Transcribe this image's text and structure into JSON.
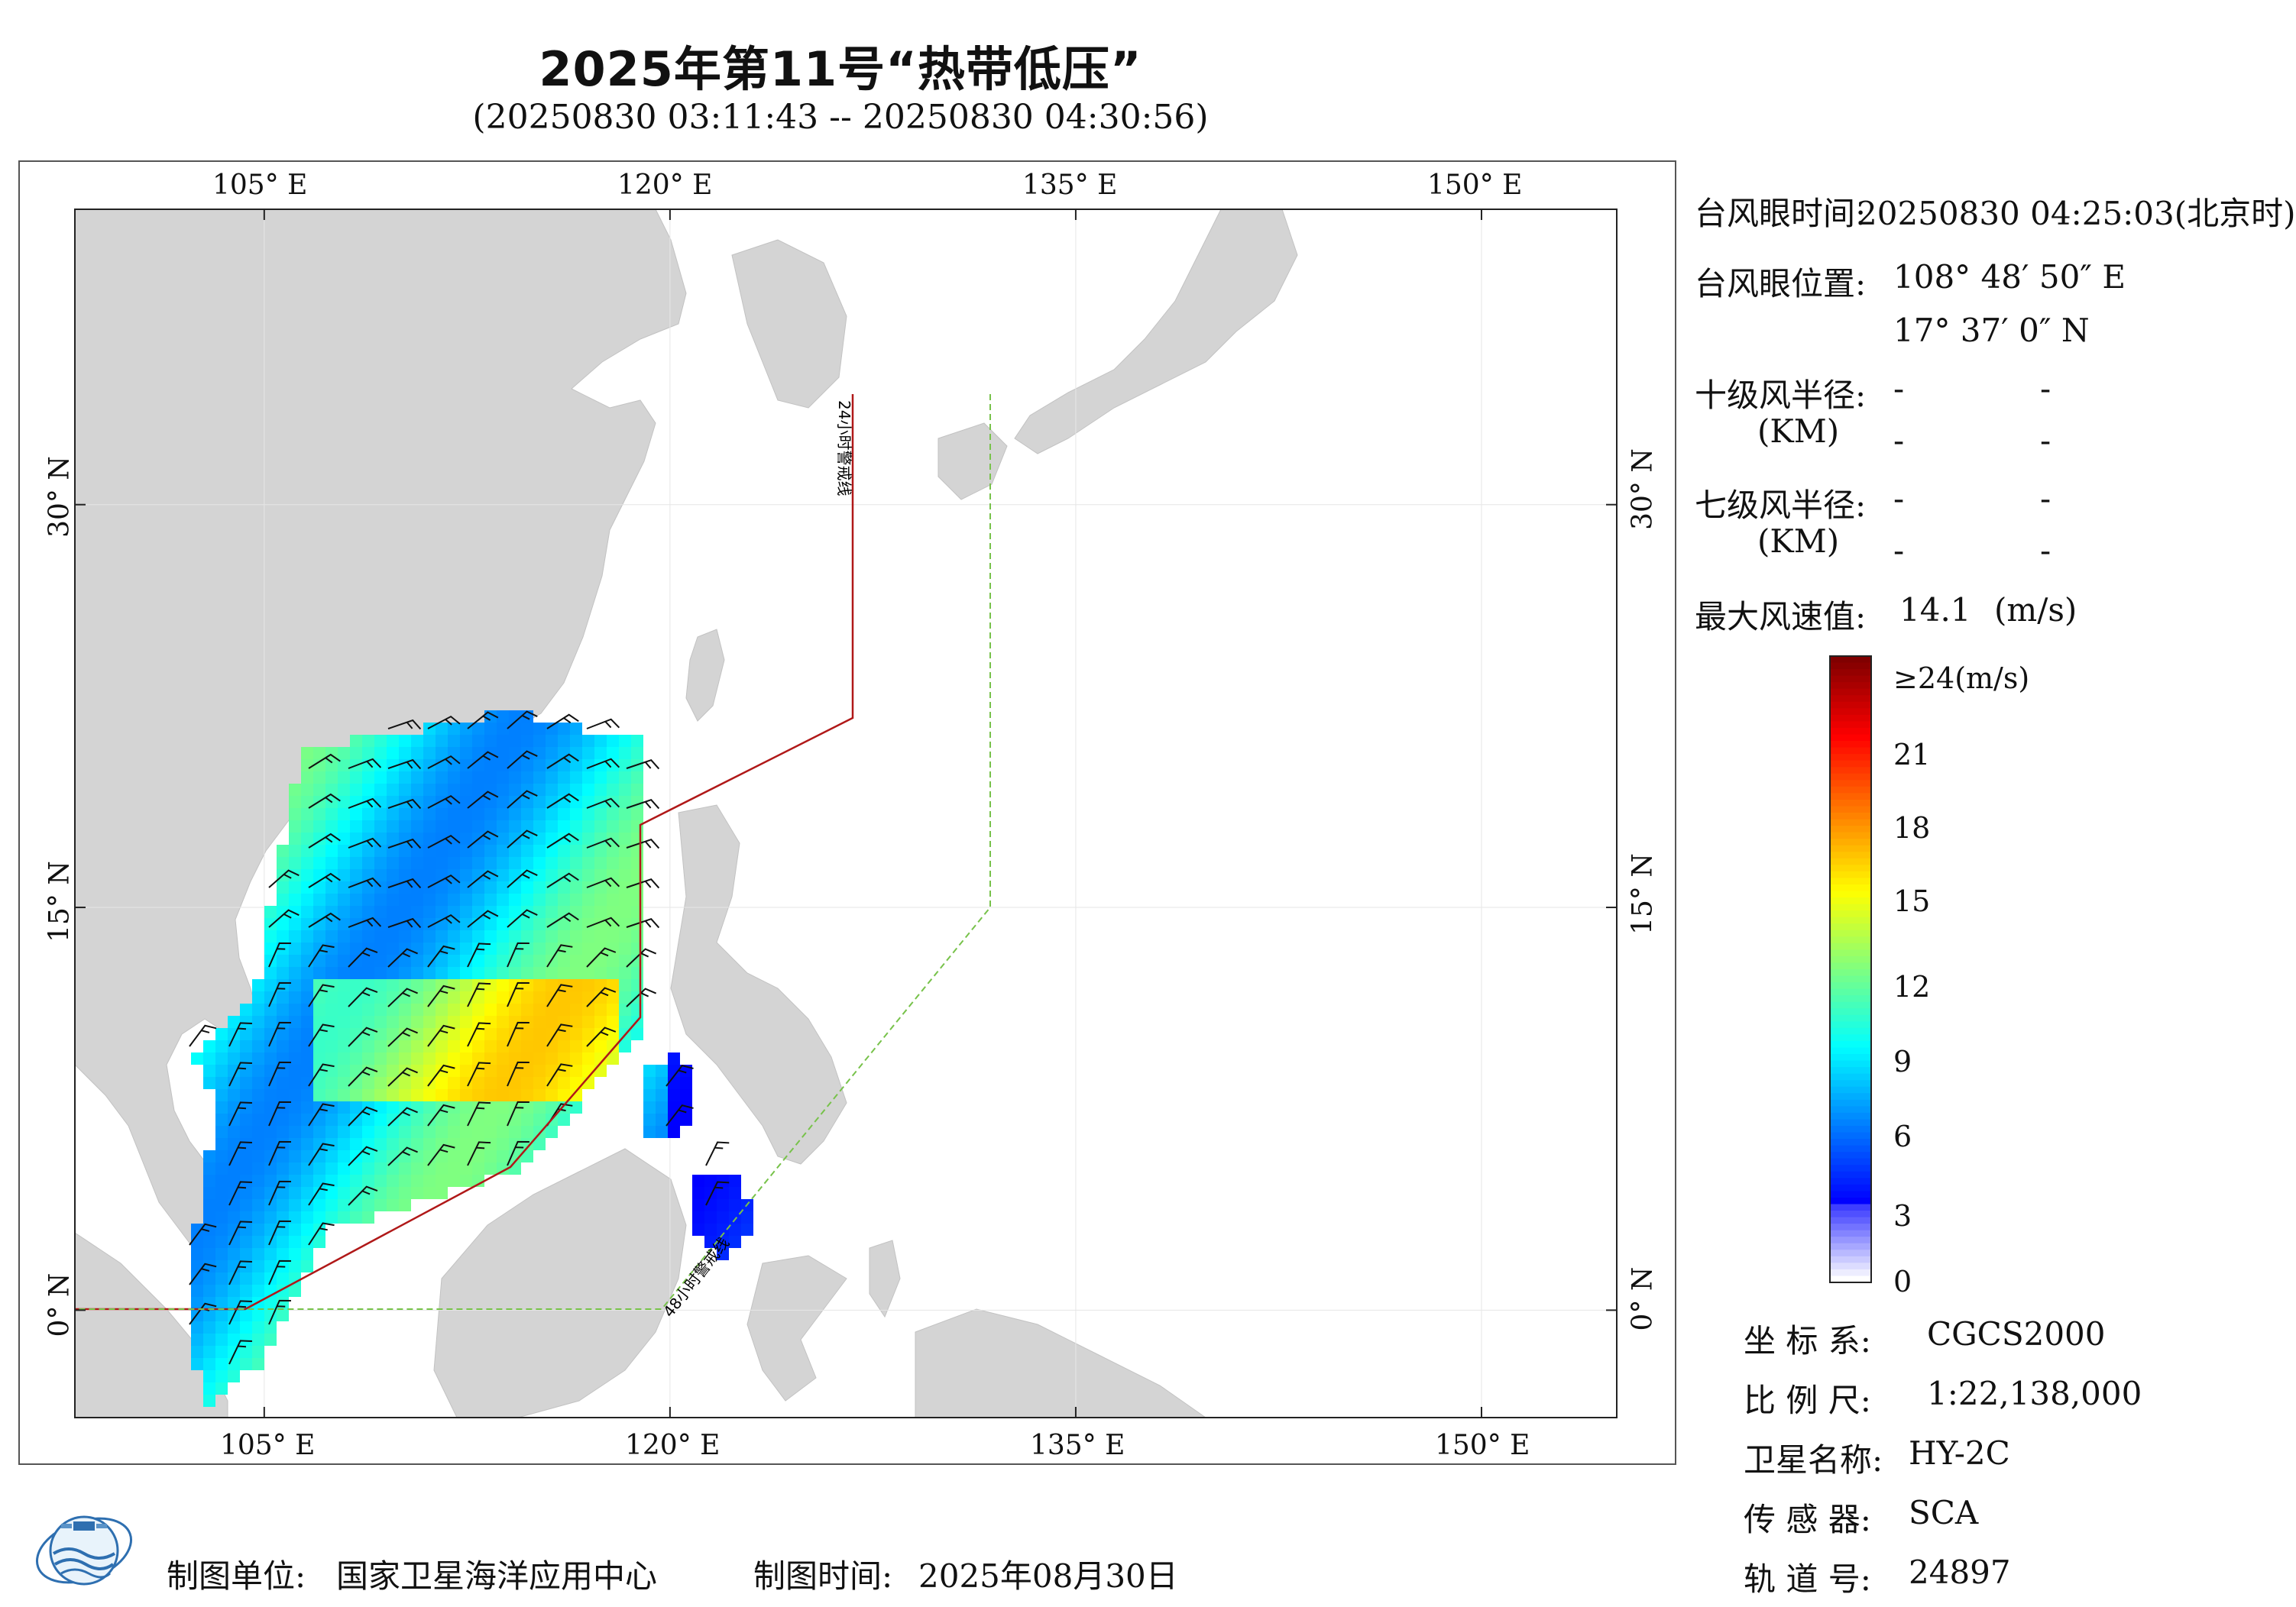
{
  "title": "2025年第11号“热带低压”",
  "subtitle": "(20250830 03:11:43 -- 20250830 04:30:56)",
  "map": {
    "lon_ticks": [
      "105° E",
      "120° E",
      "135° E",
      "150° E"
    ],
    "lat_ticks": [
      "30° N",
      "15° N",
      "0° N"
    ],
    "line_24h_label": "24小时警戒线",
    "line_48h_label": "48小时警戒线",
    "colors": {
      "land": "#d4d4d4",
      "sea": "#ffffff",
      "line_24h": "#b01818",
      "line_48h": "#77c24a"
    },
    "extent": {
      "lon_min": 98,
      "lon_max": 155,
      "lat_min": -4,
      "lat_max": 41
    }
  },
  "info": {
    "eye_time_label": "台风眼时间:",
    "eye_time_value": "20250830 04:25:03(北京时)",
    "eye_pos_label": "台风眼位置:",
    "eye_lon": "108° 48′ 50″ E",
    "eye_lat": "17° 37′ 0″ N",
    "r10_label": "十级风半径:",
    "r7_label": "七级风半径:",
    "unit_km": "(KM)",
    "dash": "-",
    "max_wind_label": "最大风速值:",
    "max_wind_value": "14.1",
    "max_wind_unit": "(m/s)"
  },
  "colorbar": {
    "top_label": "≥24(m/s)",
    "ticks": [
      "21",
      "18",
      "15",
      "12",
      "9",
      "6",
      "3",
      "0"
    ],
    "min": 0,
    "max": 24
  },
  "meta": {
    "crs_label": "坐 标 系:",
    "crs_value": "CGCS2000",
    "scale_label": "比 例 尺:",
    "scale_value": "1:22,138,000",
    "sat_label": "卫星名称:",
    "sat_value": "HY-2C",
    "sensor_label": "传 感 器:",
    "sensor_value": "SCA",
    "orbit_label": "轨 道 号:",
    "orbit_value": "24897"
  },
  "footer": {
    "unit_label": "制图单位:",
    "unit_value": "国家卫星海洋应用中心",
    "time_label": "制图时间:",
    "time_value": "2025年08月30日"
  }
}
